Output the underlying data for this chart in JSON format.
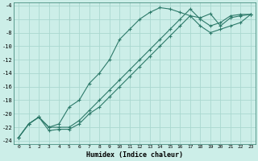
{
  "xlabel": "Humidex (Indice chaleur)",
  "background_color": "#cceee8",
  "grid_color": "#aad8d0",
  "line_color": "#2d7a6a",
  "xlim": [
    -0.5,
    23.5
  ],
  "ylim": [
    -24.5,
    -3.5
  ],
  "xticks": [
    0,
    1,
    2,
    3,
    4,
    5,
    6,
    7,
    8,
    9,
    10,
    11,
    12,
    13,
    14,
    15,
    16,
    17,
    18,
    19,
    20,
    21,
    22,
    23
  ],
  "yticks": [
    -4,
    -6,
    -8,
    -10,
    -12,
    -14,
    -16,
    -18,
    -20,
    -22,
    -24
  ],
  "line1_x": [
    0,
    1,
    2,
    3,
    4,
    5,
    6,
    7,
    8,
    9,
    10,
    11,
    12,
    13,
    14,
    15,
    16,
    17,
    18,
    19,
    20,
    21,
    22,
    23
  ],
  "line1_y": [
    -23.5,
    -21.5,
    -20.5,
    -22.0,
    -21.5,
    -19.0,
    -18.0,
    -15.5,
    -14.0,
    -12.0,
    -9.0,
    -7.5,
    -6.0,
    -5.0,
    -4.3,
    -4.5,
    -5.0,
    -5.5,
    -5.8,
    -5.2,
    -7.0,
    -5.8,
    -5.5,
    -5.3
  ],
  "line2_x": [
    0,
    1,
    2,
    3,
    4,
    5,
    6,
    7,
    8,
    9,
    10,
    11,
    12,
    13,
    14,
    15,
    16,
    17,
    18,
    19,
    20,
    21,
    22,
    23
  ],
  "line2_y": [
    -23.5,
    -21.5,
    -20.5,
    -22.0,
    -22.0,
    -22.0,
    -21.0,
    -19.5,
    -18.0,
    -16.5,
    -15.0,
    -13.5,
    -12.0,
    -10.5,
    -9.0,
    -7.5,
    -6.0,
    -4.5,
    -6.0,
    -7.0,
    -6.5,
    -5.5,
    -5.3,
    -5.3
  ],
  "line3_x": [
    0,
    1,
    2,
    3,
    4,
    5,
    6,
    7,
    8,
    9,
    10,
    11,
    12,
    13,
    14,
    15,
    16,
    17,
    18,
    19,
    20,
    21,
    22,
    23
  ],
  "line3_y": [
    -23.5,
    -21.5,
    -20.5,
    -22.5,
    -22.3,
    -22.3,
    -21.5,
    -20.0,
    -19.0,
    -17.5,
    -16.0,
    -14.5,
    -13.0,
    -11.5,
    -10.0,
    -8.5,
    -7.0,
    -5.5,
    -7.0,
    -8.0,
    -7.5,
    -7.0,
    -6.5,
    -5.3
  ]
}
